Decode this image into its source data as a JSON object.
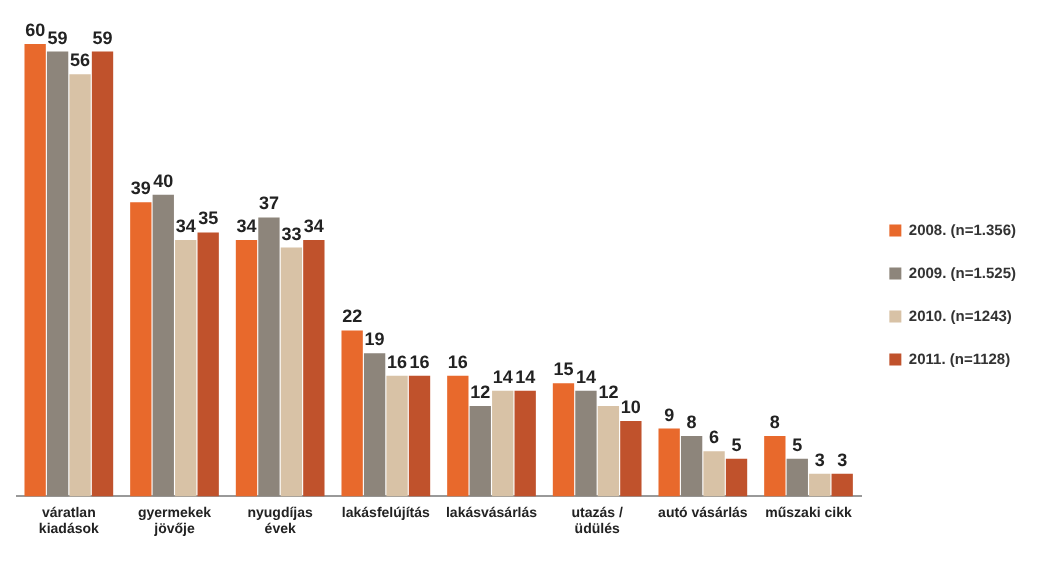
{
  "chart_data": {
    "type": "bar",
    "categories": [
      "váratlan\nkiadások",
      "gyermekek\njövője",
      "nyugdíjas\névek",
      "lakásfelújítás",
      "lakásvásárlás",
      "utazás /\nüdülés",
      "autó vásárlás",
      "műszaki cikk"
    ],
    "series": [
      {
        "name": "2008. (n=1.356)",
        "color": "#e8692c",
        "values": [
          60,
          39,
          34,
          22,
          16,
          15,
          9,
          8
        ]
      },
      {
        "name": "2009. (n=1.525)",
        "color": "#8d857b",
        "values": [
          59,
          40,
          37,
          19,
          12,
          14,
          8,
          5
        ]
      },
      {
        "name": "2010. (n=1243)",
        "color": "#d8c2a6",
        "values": [
          56,
          34,
          33,
          16,
          14,
          12,
          6,
          3
        ]
      },
      {
        "name": "2011. (n=1128)",
        "color": "#c0522c",
        "values": [
          59,
          35,
          34,
          16,
          14,
          10,
          5,
          3
        ]
      }
    ],
    "data_labels": true,
    "legend": "right",
    "grid": false
  }
}
